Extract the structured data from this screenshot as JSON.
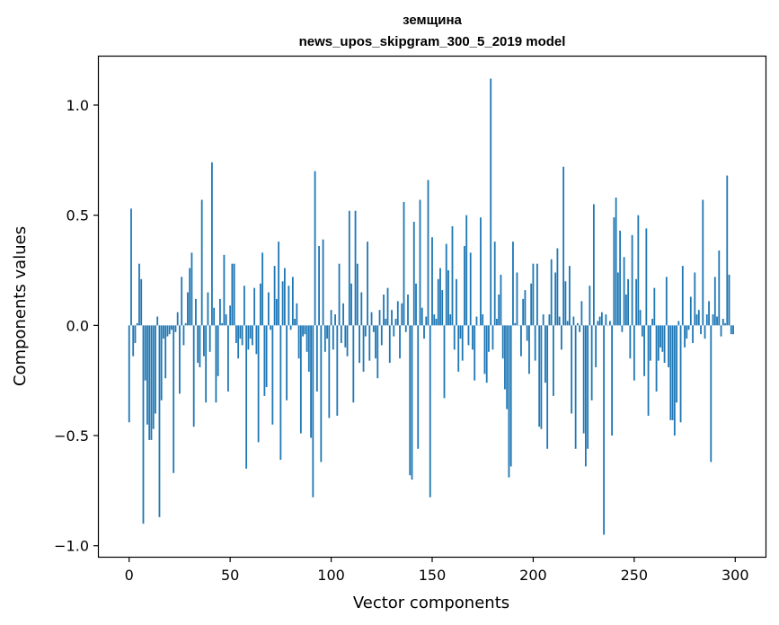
{
  "chart_data": {
    "type": "bar",
    "title": "земщина",
    "subtitle": "news_upos_skipgram_300_5_2019 model",
    "xlabel": "Vector components",
    "ylabel": "Components values",
    "xlim": [
      -15,
      315
    ],
    "ylim": [
      -1.05,
      1.22
    ],
    "xticks": [
      0,
      50,
      100,
      150,
      200,
      250,
      300
    ],
    "yticks": [
      -1.0,
      -0.5,
      0.0,
      0.5,
      1.0
    ],
    "ytick_labels": [
      "−1.0",
      "−0.5",
      "0.0",
      "0.5",
      "1.0"
    ],
    "grid": false,
    "bar_color": "#1f77b4",
    "values": [
      -0.44,
      0.53,
      -0.14,
      -0.08,
      0.01,
      0.28,
      0.21,
      -0.9,
      -0.25,
      -0.45,
      -0.52,
      -0.52,
      -0.47,
      -0.4,
      0.04,
      -0.87,
      -0.34,
      -0.06,
      -0.24,
      -0.05,
      -0.04,
      -0.02,
      -0.67,
      -0.03,
      0.06,
      -0.31,
      0.22,
      -0.09,
      0.01,
      0.15,
      0.26,
      0.33,
      -0.46,
      0.12,
      -0.17,
      -0.19,
      0.57,
      -0.14,
      -0.35,
      0.15,
      -0.12,
      0.74,
      0.08,
      -0.35,
      -0.23,
      0.12,
      0.01,
      0.32,
      0.05,
      -0.3,
      0.09,
      0.28,
      0.28,
      -0.08,
      -0.15,
      -0.06,
      -0.09,
      0.18,
      -0.65,
      -0.11,
      -0.06,
      -0.09,
      0.17,
      -0.13,
      -0.53,
      0.19,
      0.33,
      -0.32,
      -0.28,
      0.15,
      -0.02,
      -0.45,
      0.27,
      0.12,
      0.38,
      -0.61,
      0.2,
      0.26,
      -0.34,
      0.18,
      -0.02,
      0.22,
      0.03,
      0.1,
      -0.15,
      -0.49,
      -0.05,
      -0.04,
      -0.12,
      -0.21,
      -0.51,
      -0.78,
      0.7,
      -0.3,
      0.36,
      -0.62,
      0.39,
      -0.12,
      -0.06,
      -0.42,
      0.07,
      -0.11,
      0.05,
      -0.41,
      0.28,
      -0.08,
      0.1,
      -0.1,
      -0.14,
      0.52,
      0.19,
      -0.35,
      0.52,
      0.28,
      -0.17,
      0.15,
      -0.21,
      -0.05,
      0.38,
      -0.16,
      0.06,
      -0.03,
      -0.15,
      -0.24,
      0.07,
      -0.09,
      0.14,
      0.03,
      0.17,
      -0.17,
      0.07,
      -0.05,
      0.03,
      0.11,
      -0.15,
      0.1,
      0.56,
      -0.03,
      0.14,
      -0.68,
      -0.7,
      0.47,
      0.19,
      -0.56,
      0.57,
      0.08,
      -0.06,
      0.04,
      0.66,
      -0.78,
      0.4,
      0.05,
      0.03,
      0.21,
      0.26,
      0.16,
      -0.33,
      0.37,
      0.25,
      0.05,
      0.45,
      -0.11,
      0.21,
      -0.21,
      -0.06,
      -0.16,
      0.36,
      0.5,
      -0.09,
      0.33,
      -0.11,
      -0.25,
      0.04,
      0.0,
      0.49,
      0.05,
      -0.22,
      -0.26,
      -0.12,
      1.12,
      -0.11,
      0.38,
      0.03,
      0.14,
      0.23,
      -0.15,
      -0.29,
      -0.38,
      -0.69,
      -0.64,
      0.38,
      0.01,
      0.24,
      0.0,
      -0.14,
      0.12,
      0.16,
      -0.07,
      -0.22,
      0.19,
      0.28,
      -0.16,
      0.28,
      -0.46,
      -0.47,
      0.05,
      -0.26,
      -0.56,
      0.05,
      0.3,
      -0.32,
      0.24,
      0.35,
      0.04,
      -0.11,
      0.72,
      0.2,
      0.02,
      0.27,
      -0.4,
      0.04,
      -0.56,
      0.01,
      -0.03,
      0.11,
      -0.49,
      -0.64,
      -0.56,
      0.18,
      -0.34,
      0.55,
      -0.19,
      0.02,
      0.04,
      0.06,
      -0.95,
      0.05,
      0.0,
      0.02,
      -0.5,
      0.49,
      0.58,
      0.24,
      0.43,
      -0.03,
      0.31,
      0.14,
      0.21,
      -0.15,
      0.41,
      -0.25,
      0.21,
      0.5,
      0.07,
      -0.05,
      -0.23,
      0.44,
      -0.41,
      -0.16,
      0.03,
      0.17,
      -0.3,
      -0.16,
      -0.1,
      -0.12,
      -0.17,
      0.22,
      -0.19,
      -0.43,
      -0.43,
      -0.5,
      -0.35,
      0.02,
      -0.44,
      0.27,
      -0.1,
      -0.06,
      -0.02,
      0.13,
      -0.08,
      0.24,
      0.05,
      0.07,
      -0.04,
      0.57,
      -0.06,
      0.05,
      0.11,
      -0.62,
      0.05,
      0.22,
      0.04,
      0.34,
      -0.05,
      0.03,
      0.01,
      0.68,
      0.23,
      -0.04,
      -0.04
    ]
  }
}
